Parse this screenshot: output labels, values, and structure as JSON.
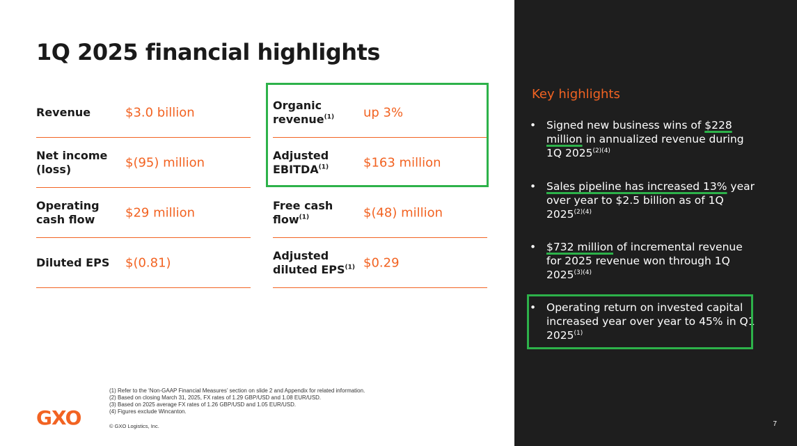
{
  "title": "1Q 2025 financial highlights",
  "metrics_left": [
    {
      "label": "Revenue",
      "value": "$3.0 billion"
    },
    {
      "label": "Net income (loss)",
      "value": "$(95) million"
    },
    {
      "label": "Operating cash flow",
      "value": "$29 million"
    },
    {
      "label": "Diluted EPS",
      "value": "$(0.81)"
    }
  ],
  "metrics_right": [
    {
      "label": "Organic revenue",
      "footnote": "(1)",
      "value": "up 3%"
    },
    {
      "label": "Adjusted EBITDA",
      "footnote": "(1)",
      "value": "$163 million"
    },
    {
      "label": "Free cash flow",
      "footnote": "(1)",
      "value": "$(48) million"
    },
    {
      "label": "Adjusted diluted EPS",
      "footnote": "(1)",
      "value": "$0.29"
    }
  ],
  "footnotes": [
    "(1) Refer to the ‘Non-GAAP Financial Measures’ section on slide 2 and Appendix for related information.",
    "(2) Based on closing March 31, 2025, FX rates of 1.29 GBP/USD and 1.08 EUR/USD.",
    "(3) Based on 2025 average FX rates of 1.26 GBP/USD and 1.05 EUR/USD.",
    "(4) Figures exclude Wincanton."
  ],
  "copyright": "© GXO Logistics, Inc.",
  "logo": "GXO",
  "key_highlights": {
    "title": "Key highlights",
    "bullets": [
      {
        "pre": "Signed new business wins of ",
        "highlight": "$228 million",
        "post": " in annualized revenue during 1Q 2025",
        "sup": "(2)(4)"
      },
      {
        "pre": "",
        "highlight": "Sales pipeline has increased 13%",
        "post": " year over year to $2.5 billion as of 1Q 2025",
        "sup": "(2)(4)"
      },
      {
        "pre": "",
        "highlight": "$732 million",
        "post": " of incremental revenue for 2025 revenue won through 1Q 2025",
        "sup": "(3)(4)"
      },
      {
        "pre": "",
        "highlight": "",
        "post": "Operating return on invested capital increased year over year to 45% in Q1 2025",
        "sup": "(1)"
      }
    ]
  },
  "page_number": "7",
  "colors": {
    "accent": "#f26322",
    "highlight_box": "#2db24a",
    "panel": "#1e1e1e"
  }
}
